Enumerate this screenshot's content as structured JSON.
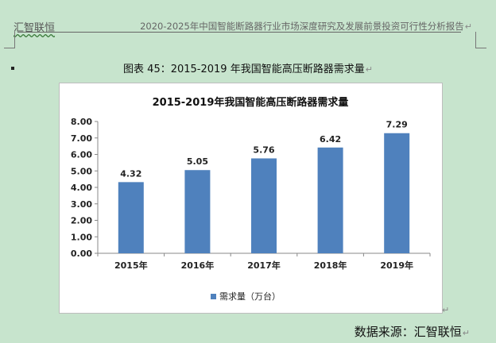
{
  "header": {
    "left": "汇智联恒",
    "right": "2020-2025年中国智能断路器行业市场深度研究及发展前景投资可行性分析报告"
  },
  "caption": "图表 45：2015-2019 年我国智能高压断路器需求量",
  "source": "数据来源：汇智联恒",
  "return_mark": "↵",
  "colors": {
    "bar": "#4f81bd",
    "background": "#c7e4cd"
  },
  "chart_data": {
    "type": "bar",
    "title": "2015-2019年我国智能高压断路器需求量",
    "categories": [
      "2015年",
      "2016年",
      "2017年",
      "2018年",
      "2019年"
    ],
    "series": [
      {
        "name": "需求量（万台）",
        "values": [
          4.32,
          5.05,
          5.76,
          6.42,
          7.29
        ]
      }
    ],
    "ylim": [
      0,
      8
    ],
    "yticks": [
      "0.00",
      "1.00",
      "2.00",
      "3.00",
      "4.00",
      "5.00",
      "6.00",
      "7.00",
      "8.00"
    ],
    "data_labels": [
      "4.32",
      "5.05",
      "5.76",
      "6.42",
      "7.29"
    ],
    "legend_position": "bottom",
    "grid": false
  }
}
